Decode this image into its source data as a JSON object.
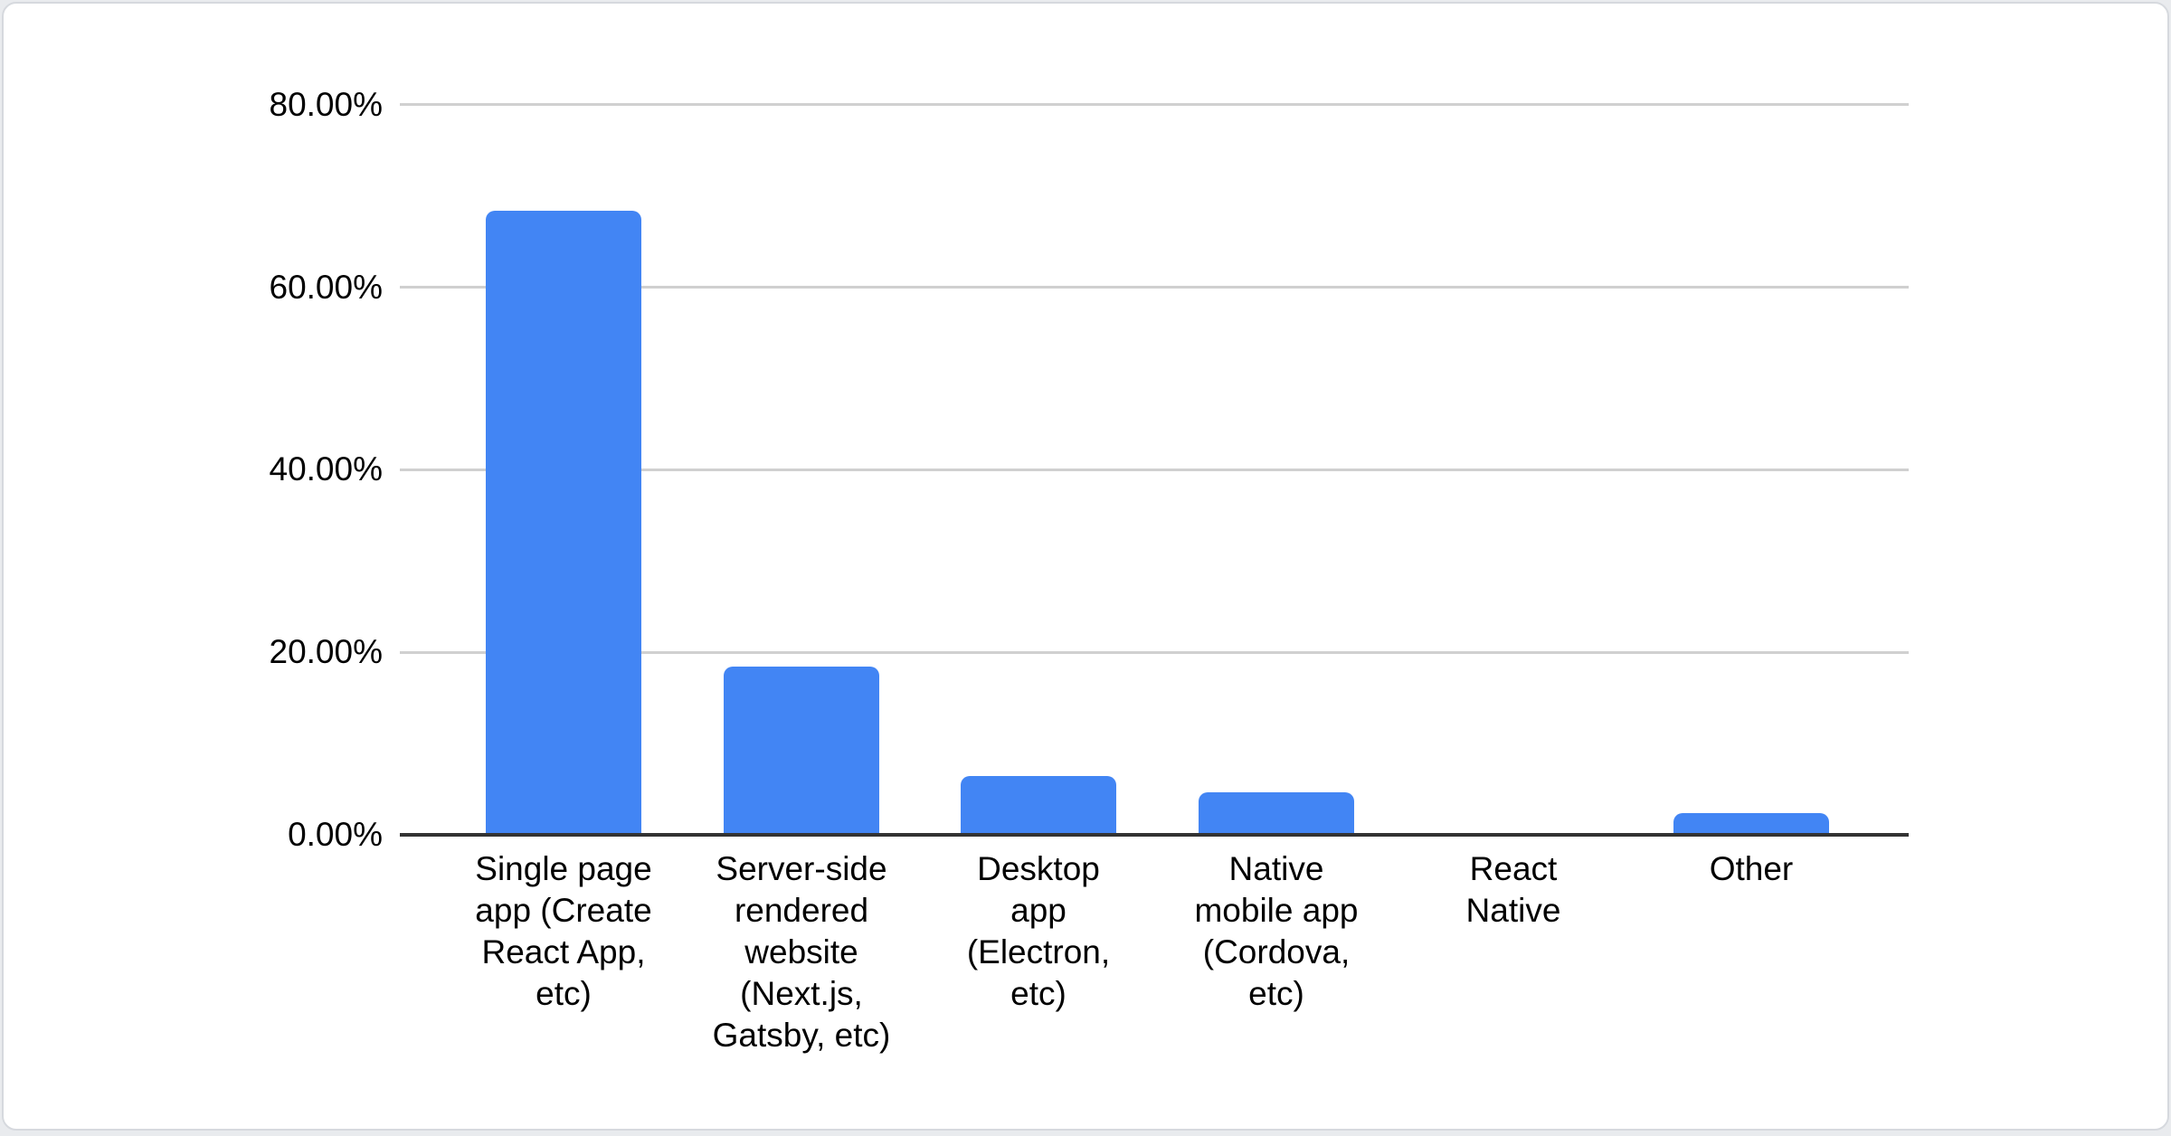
{
  "page": {
    "background": "#e9ebee",
    "card_background": "#ffffff",
    "card_border": "#d6d9de"
  },
  "chart_data": {
    "type": "bar",
    "title": "",
    "xlabel": "",
    "ylabel": "",
    "categories": [
      "Single page app (Create React App, etc)",
      "Server-side rendered website (Next.js, Gatsby, etc)",
      "Desktop app (Electron, etc)",
      "Native mobile app (Cordova, etc)",
      "React Native",
      "Other"
    ],
    "category_label_lines": [
      [
        "Single page",
        "app (Create",
        "React App,",
        "etc)"
      ],
      [
        "Server-side",
        "rendered",
        "website",
        "(Next.js,",
        "Gatsby, etc)"
      ],
      [
        "Desktop",
        "app",
        "(Electron,",
        "etc)"
      ],
      [
        "Native",
        "mobile app",
        "(Cordova,",
        "etc)"
      ],
      [
        "React",
        "Native"
      ],
      [
        "Other"
      ]
    ],
    "values": [
      68.4,
      18.4,
      6.4,
      4.7,
      0,
      2.4
    ],
    "unit": "%",
    "ylim": [
      0,
      80
    ],
    "yticks": [
      0,
      20,
      40,
      60,
      80
    ],
    "ytick_labels": [
      "0.00%",
      "20.00%",
      "40.00%",
      "60.00%",
      "80.00%"
    ],
    "grid": true,
    "legend": "none",
    "colors": {
      "bar": "#4285f4",
      "axis_line": "#333333",
      "gridline": "#d0d0d0",
      "text": "#000000"
    }
  }
}
